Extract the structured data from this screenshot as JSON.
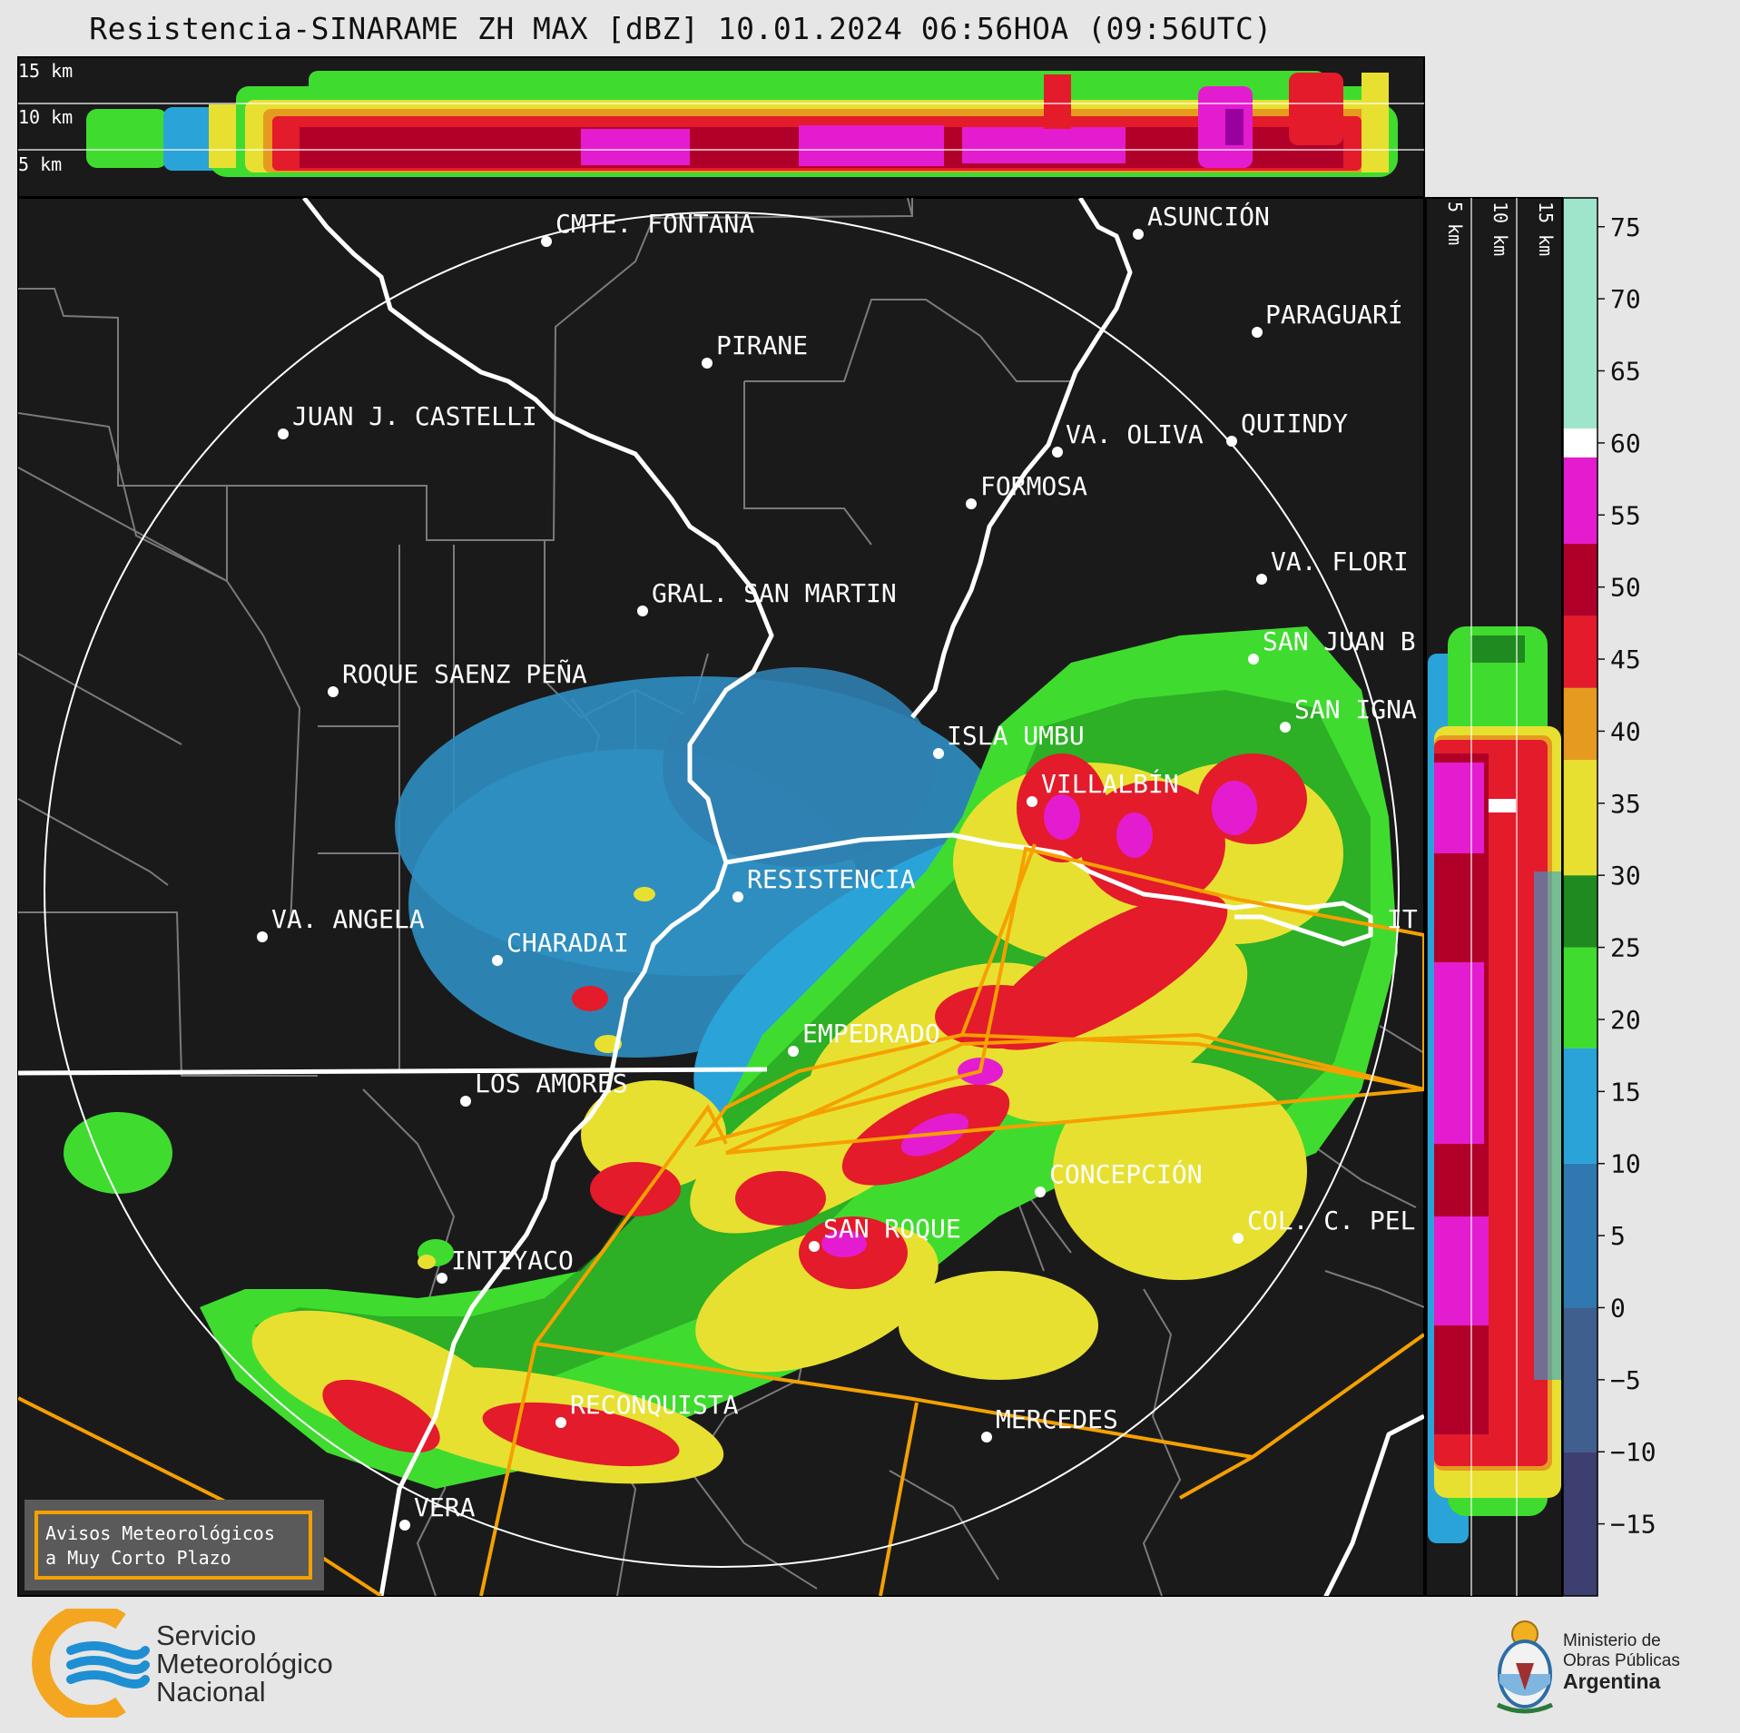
{
  "title": "Resistencia-SINARAME ZH MAX [dBZ] 10.01.2024 06:56HOA (09:56UTC)",
  "top_panel": {
    "height_labels": [
      "15 km",
      "10 km",
      "5 km"
    ]
  },
  "side_panel": {
    "height_labels": [
      "5 km",
      "10 km",
      "15 km"
    ]
  },
  "colorbar": {
    "unit": "dBZ",
    "ticks": [
      "75",
      "70",
      "65",
      "60",
      "55",
      "50",
      "45",
      "40",
      "35",
      "30",
      "25",
      "20",
      "15",
      "10",
      "5",
      "0",
      "−5",
      "−10",
      "−15"
    ],
    "bands": [
      {
        "from": -20,
        "to": -10,
        "color": "#3c3f70"
      },
      {
        "from": -10,
        "to": 0,
        "color": "#3f5f8f"
      },
      {
        "from": 0,
        "to": 10,
        "color": "#2f78b0"
      },
      {
        "from": 10,
        "to": 18,
        "color": "#2aa3d8"
      },
      {
        "from": 18,
        "to": 25,
        "color": "#3fdc2f"
      },
      {
        "from": 25,
        "to": 30,
        "color": "#1f8a1f"
      },
      {
        "from": 30,
        "to": 38,
        "color": "#e8e030"
      },
      {
        "from": 38,
        "to": 43,
        "color": "#e69a20"
      },
      {
        "from": 43,
        "to": 48,
        "color": "#e31b2b"
      },
      {
        "from": 48,
        "to": 53,
        "color": "#b0002a"
      },
      {
        "from": 53,
        "to": 59,
        "color": "#e41ccf"
      },
      {
        "from": 59,
        "to": 61,
        "color": "#ffffff"
      },
      {
        "from": 61,
        "to": 77,
        "color": "#9fe5cc"
      }
    ]
  },
  "cities": [
    {
      "name": "CMTE. FONTANA"
    },
    {
      "name": "ASUNCIÓN"
    },
    {
      "name": "PARAGUARÍ"
    },
    {
      "name": "PIRANE"
    },
    {
      "name": "JUAN J. CASTELLI"
    },
    {
      "name": "VA. OLIVA"
    },
    {
      "name": "QUIINDY"
    },
    {
      "name": "FORMOSA"
    },
    {
      "name": "VA. FLORI"
    },
    {
      "name": "GRAL. SAN MARTIN"
    },
    {
      "name": "ROQUE SAENZ PEÑA"
    },
    {
      "name": "SAN JUAN B"
    },
    {
      "name": "SAN IGNA"
    },
    {
      "name": "ISLA UMBU"
    },
    {
      "name": "VILLALBÍN"
    },
    {
      "name": "RESISTENCIA"
    },
    {
      "name": "VA. ANGELA"
    },
    {
      "name": "CHARADAI"
    },
    {
      "name": "IT"
    },
    {
      "name": "EMPEDRADO"
    },
    {
      "name": "LOS AMORES"
    },
    {
      "name": "CONCEPCIÓN"
    },
    {
      "name": "SAN ROQUE"
    },
    {
      "name": "COL. C. PEL"
    },
    {
      "name": "INTIYACO"
    },
    {
      "name": "RECONQUISTA"
    },
    {
      "name": "MERCEDES"
    },
    {
      "name": "VERA"
    }
  ],
  "alert_box": {
    "line1": "Avisos Meteorológicos",
    "line2": "a Muy Corto Plazo"
  },
  "brand": {
    "line1": "Servicio",
    "line2": "Meteorológico",
    "line3": "Nacional"
  },
  "ministry": {
    "line1": "Ministerio de",
    "line2": "Obras Públicas",
    "line3": "Argentina"
  }
}
